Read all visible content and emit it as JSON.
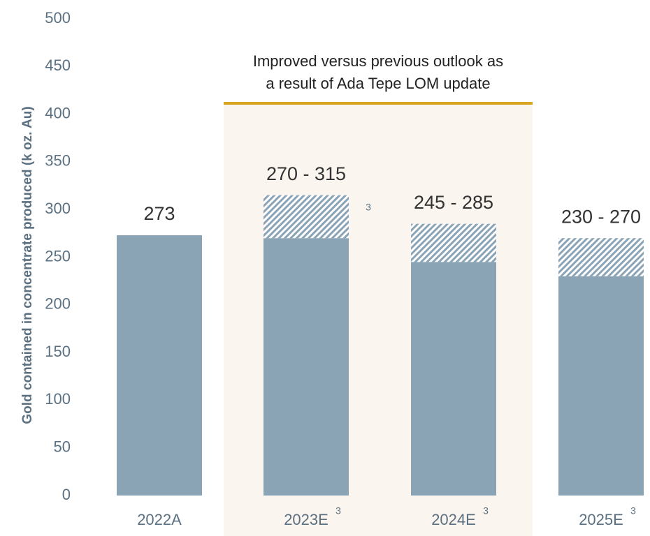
{
  "chart_data": {
    "type": "range_bar",
    "y_label": "Gold contained in concentrate produced (k oz. Au)",
    "categories": [
      "2022A",
      "2023E",
      "2024E",
      "2025E"
    ],
    "category_notes": [
      null,
      "3",
      "3",
      "3"
    ],
    "low": [
      273,
      270,
      245,
      230
    ],
    "high": [
      null,
      315,
      285,
      270
    ],
    "value_labels": [
      "273",
      "270 - 315",
      "245 - 285",
      "230 - 270"
    ],
    "bar_note": "3",
    "annotation": [
      "Improved versus previous outlook as",
      "a result of Ada Tepe LOM update"
    ],
    "color": "#8aa4b6",
    "highlight_color": "#fbf5ef",
    "line_color": "#d9a520",
    "ylim": [
      0,
      500
    ],
    "yticks": [
      0,
      50,
      100,
      150,
      200,
      250,
      300,
      350,
      400,
      450,
      500
    ],
    "grid": false
  }
}
